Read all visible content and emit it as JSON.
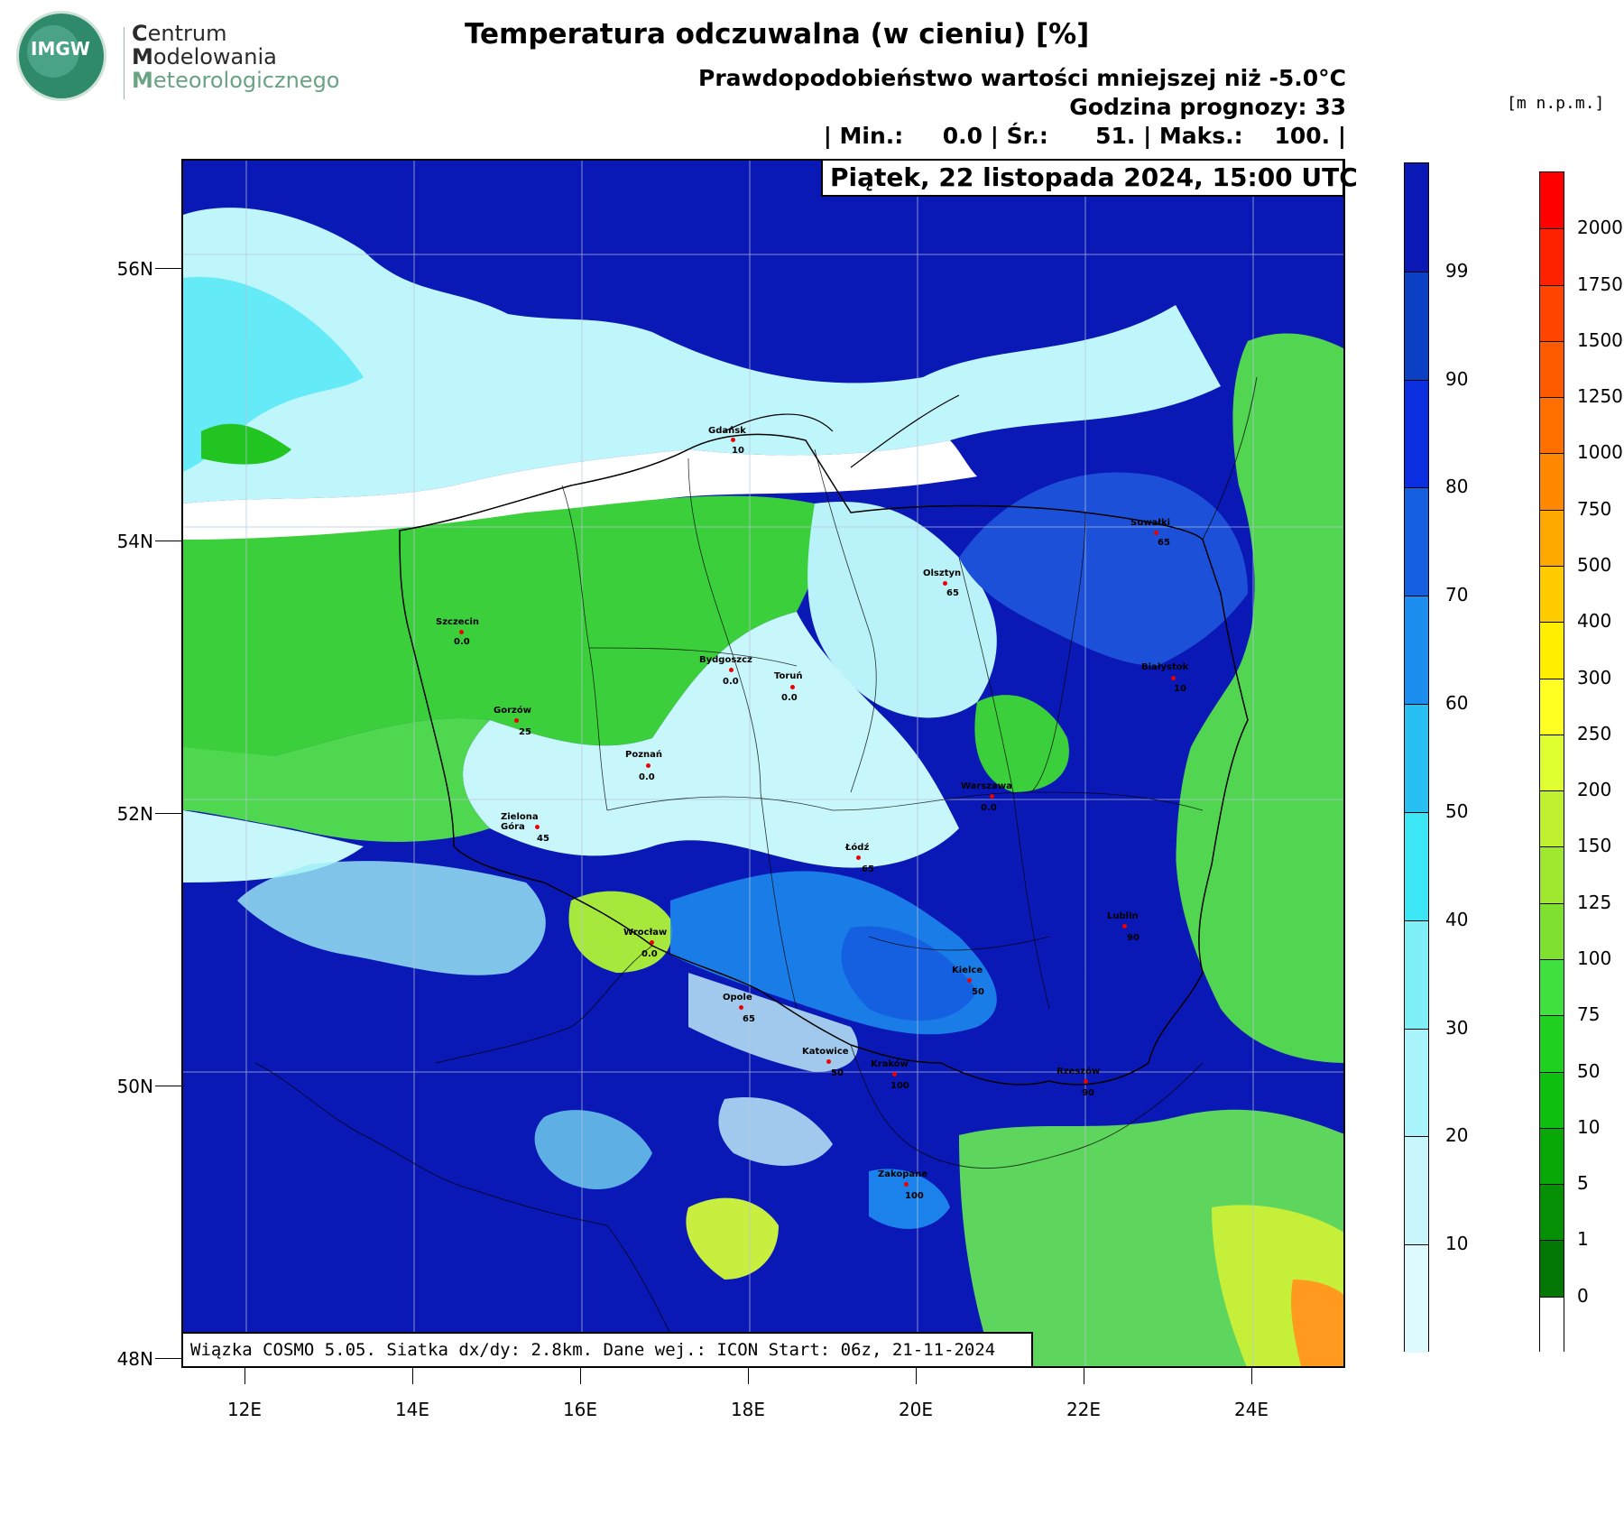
{
  "logo": {
    "badge": "IMGW",
    "line1_bold": "C",
    "line1": "entrum",
    "line2_bold": "M",
    "line2": "odelowania",
    "line3_bold": "M",
    "line3": "eteorologicznego"
  },
  "title": "Temperatura odczuwalna (w cieniu) [%]",
  "subtitle": "Prawdopodobieństwo wartości mniejszej niż -5.0°C",
  "forecast_hour": "Godzina prognozy: 33",
  "stats": "| Min.:     0.0 | Śr.:      51. | Maks.:    100. |",
  "date": "Piątek, 22 listopada 2024, 15:00 UTC",
  "model_info": "Wiązka COSMO 5.05. Siatka dx/dy: 2.8km. Dane wej.: ICON Start: 06z, 21-11-2024",
  "units_label": "[m n.p.m.]",
  "axes": {
    "lat_labels": [
      "56N",
      "54N",
      "52N",
      "50N",
      "48N"
    ],
    "lon_labels": [
      "12E",
      "14E",
      "16E",
      "18E",
      "20E",
      "22E",
      "24E"
    ]
  },
  "prob_colorbar": {
    "labels": [
      "99",
      "90",
      "80",
      "70",
      "60",
      "50",
      "40",
      "30",
      "20",
      "10"
    ],
    "colors": [
      "#0a18b6",
      "#0b3fc4",
      "#0a2ee0",
      "#1460e0",
      "#1c8ef0",
      "#28c0f2",
      "#3ce6f5",
      "#80f0f8",
      "#a8f4fa",
      "#c6f6fc",
      "#ddfbff"
    ]
  },
  "elev_colorbar": {
    "labels": [
      "2000",
      "1750",
      "1500",
      "1250",
      "1000",
      "750",
      "500",
      "400",
      "300",
      "250",
      "200",
      "150",
      "125",
      "100",
      "75",
      "50",
      "10",
      "5",
      "1",
      "0"
    ],
    "colors": [
      "#ff0000",
      "#ff2200",
      "#ff4400",
      "#ff5a00",
      "#ff7000",
      "#ff8800",
      "#ffa800",
      "#ffcc00",
      "#ffee00",
      "#ffff22",
      "#e0ff30",
      "#c0f030",
      "#a0e830",
      "#80e030",
      "#40e040",
      "#20d020",
      "#10c010",
      "#08a808",
      "#069006",
      "#047804",
      "#ffffff"
    ]
  },
  "cities": [
    {
      "name": "Gdańsk",
      "value": "10"
    },
    {
      "name": "Suwałki",
      "value": "65"
    },
    {
      "name": "Olsztyn",
      "value": "65"
    },
    {
      "name": "Szczecin",
      "value": "0.0"
    },
    {
      "name": "Bydgoszcz",
      "value": "0.0"
    },
    {
      "name": "Toruń",
      "value": "0.0"
    },
    {
      "name": "Białystok",
      "value": "10"
    },
    {
      "name": "Gorzów",
      "value": "25"
    },
    {
      "name": "Poznań",
      "value": "0.0"
    },
    {
      "name": "Warszawa",
      "value": "0.0"
    },
    {
      "name": "Zielona Góra",
      "value": "45"
    },
    {
      "name": "Łódź",
      "value": "65"
    },
    {
      "name": "Lublin",
      "value": "90"
    },
    {
      "name": "Wrocław",
      "value": "0.0"
    },
    {
      "name": "Kielce",
      "value": "50"
    },
    {
      "name": "Opole",
      "value": "65"
    },
    {
      "name": "Katowice",
      "value": "50"
    },
    {
      "name": "Kraków",
      "value": "100"
    },
    {
      "name": "Rzeszów",
      "value": "90"
    },
    {
      "name": "Zakopane",
      "value": "100"
    }
  ]
}
